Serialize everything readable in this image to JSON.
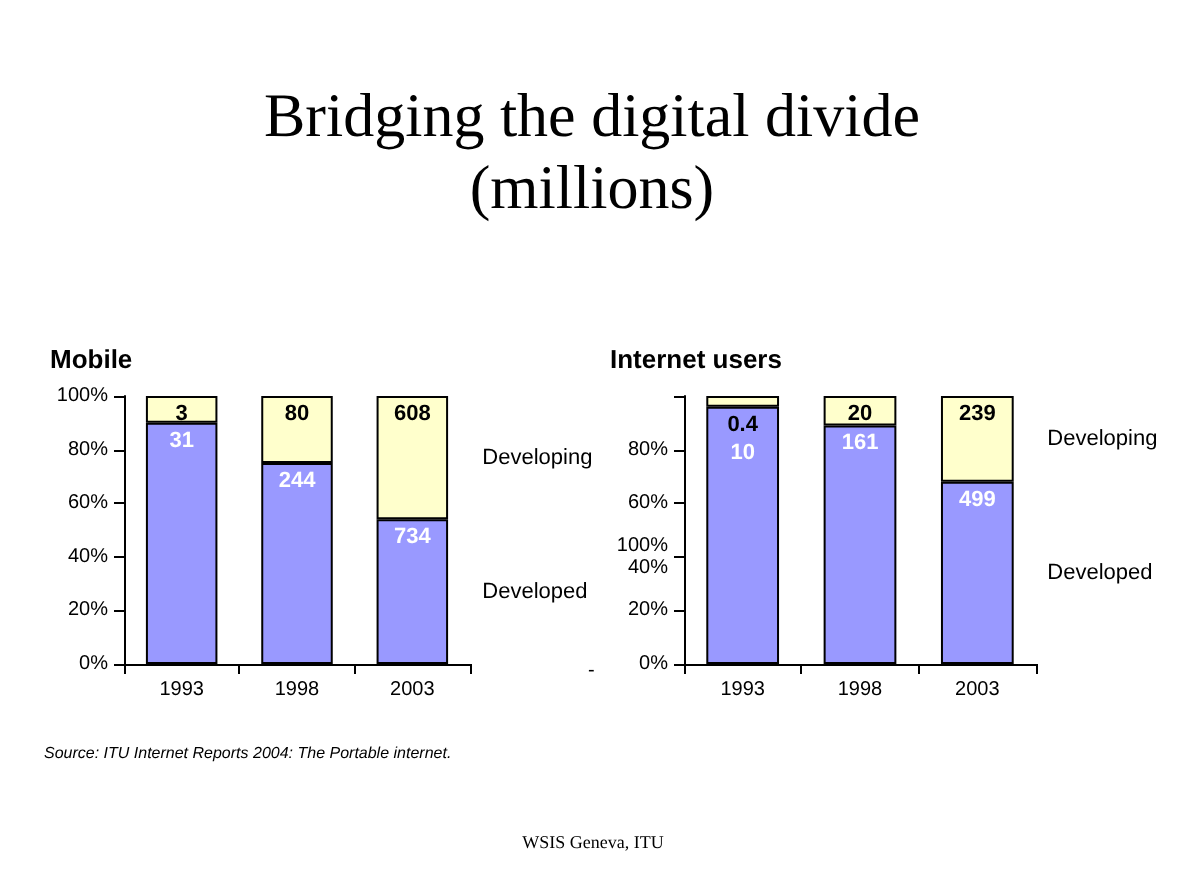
{
  "chart_data": [
    {
      "type": "bar",
      "title": "Bridging the digital divide (millions)",
      "subtitle": "Mobile",
      "categories": [
        "1993",
        "1998",
        "2003"
      ],
      "stacked": true,
      "series": [
        {
          "name": "Developed",
          "color": "#9999ff",
          "values": [
            90,
            75,
            54
          ]
        },
        {
          "name": "Developing",
          "color": "#ffffcc",
          "values": [
            10,
            25,
            46
          ]
        }
      ],
      "ylim": [
        0,
        100
      ],
      "yticks": [
        {
          "value": 0,
          "label": "0%"
        },
        {
          "value": 20,
          "label": "20%"
        },
        {
          "value": 40,
          "label": "40%"
        },
        {
          "value": 60,
          "label": "60%"
        },
        {
          "value": 80,
          "label": "80%"
        },
        {
          "value": 100,
          "label": "100%"
        }
      ],
      "annotations": [
        "Source: ITU Internet Reports 2004: The Portable internet.",
        "-",
        {
          "text": "31",
          "x": "1993",
          "y": 90
        },
        {
          "text": "244",
          "x": "1998",
          "y": 75
        },
        {
          "text": "734",
          "x": "2003",
          "y": 54
        },
        {
          "text": "3",
          "x": "1993",
          "y": 100
        },
        {
          "text": "80",
          "x": "1998",
          "y": 100
        },
        {
          "text": "608",
          "x": "2003",
          "y": 100
        }
      ]
    },
    {
      "type": "bar",
      "subtitle": "Internet users",
      "categories": [
        "1993",
        "1998",
        "2003"
      ],
      "stacked": true,
      "series": [
        {
          "name": "Developed",
          "color": "#9999ff",
          "values": [
            96,
            89,
            68
          ]
        },
        {
          "name": "Developing",
          "color": "#ffffcc",
          "values": [
            4,
            11,
            32
          ]
        }
      ],
      "ylim": [
        0,
        100
      ],
      "yticks": [
        {
          "value": 0,
          "label": "0%"
        },
        {
          "value": 20,
          "label": "20%"
        },
        {
          "value": 40,
          "label": "100%\n40%"
        },
        {
          "value": 60,
          "label": "60%"
        },
        {
          "value": 80,
          "label": "80%"
        },
        {
          "value": 100,
          "label": null
        }
      ],
      "annotations": [
        "WSIS Geneva, ITU",
        {
          "text": "10",
          "x": "1993",
          "y": 96
        },
        {
          "text": "161",
          "x": "1998",
          "y": 89
        },
        {
          "text": "499",
          "x": "2003",
          "y": 68
        },
        {
          "text": "0.4",
          "x": "1993",
          "y": 100
        },
        {
          "text": "20",
          "x": "1998",
          "y": 100
        },
        {
          "text": "239",
          "x": "2003",
          "y": 100
        }
      ]
    }
  ]
}
